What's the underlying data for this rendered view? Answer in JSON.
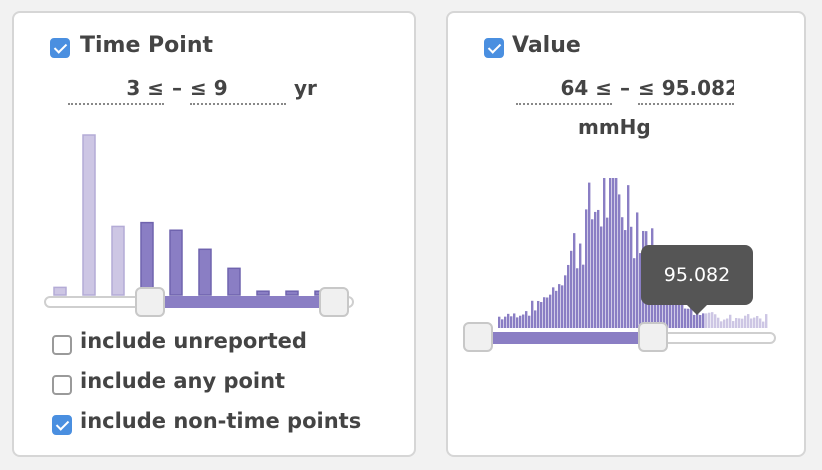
{
  "time_point": {
    "label": "Time Point",
    "checked": true,
    "min_text": "3 ≤",
    "dash": "–",
    "max_text": "≤ 9",
    "unit": "yr",
    "histogram": {
      "bars": [
        1,
        21,
        9,
        9.5,
        8.5,
        6,
        3.5,
        0.5,
        0.5,
        0.5
      ],
      "selected_from_index": 3,
      "selected_to_index": 9
    },
    "slider": {
      "min_fraction": 0.33,
      "max_fraction": 1.0
    },
    "options": [
      {
        "label": "include unreported",
        "checked": false
      },
      {
        "label": "include any point",
        "checked": false
      },
      {
        "label": "include non-time points",
        "checked": true
      }
    ]
  },
  "value": {
    "label": "Value",
    "checked": true,
    "min_text": "64 ≤",
    "dash": "–",
    "max_text": "≤ 95.082",
    "unit": "mmHg",
    "slider": {
      "min_fraction": 0.0,
      "max_fraction": 0.75
    },
    "tooltip": "95.082"
  },
  "colors": {
    "selected": "#8a7ec4",
    "unselected": "#cdc6e4",
    "checkbox": "#4a8fe0"
  }
}
